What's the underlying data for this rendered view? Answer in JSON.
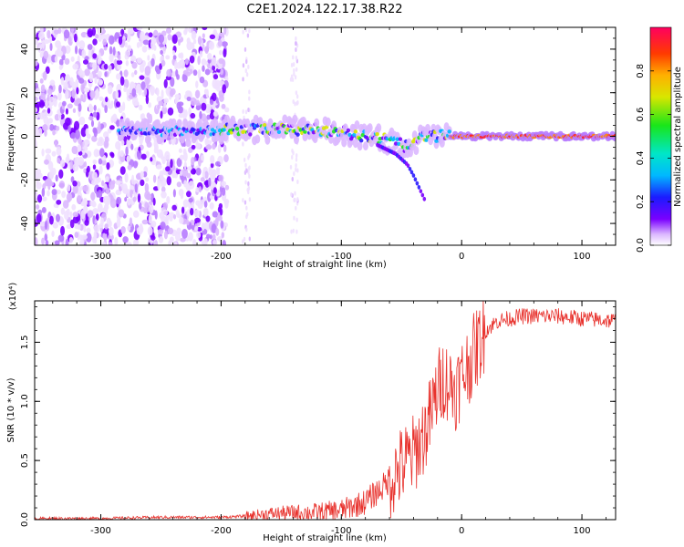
{
  "title": "C2E1.2024.122.17.38.R22",
  "colors": {
    "snr_line": "#e8322d",
    "axis": "#000000",
    "heat_low": "#e6ccff",
    "heat_mid": "#7a00ff",
    "heat_high": "#ff2020"
  },
  "chart_data": [
    {
      "type": "heatmap",
      "title": "C2E1.2024.122.17.38.R22",
      "xlabel": "Height of straight line (km)",
      "ylabel": "Frequency (Hz)",
      "xlim": [
        -355,
        128
      ],
      "ylim": [
        -50,
        50
      ],
      "xticks": [
        -300,
        -200,
        -100,
        0,
        100
      ],
      "yticks": [
        -40,
        -20,
        0,
        20,
        40
      ],
      "grid": false,
      "colorbar": {
        "label": "Normalized spectral amplitude",
        "range": [
          0,
          1
        ],
        "ticks": [
          0.0,
          0.2,
          0.4,
          0.6,
          0.8
        ]
      },
      "ridge": {
        "x": [
          -280,
          -250,
          -200,
          -150,
          -120,
          -100,
          -80,
          -60,
          -45,
          -38,
          -30,
          -20,
          0,
          50,
          128
        ],
        "y": [
          3,
          2,
          3,
          3,
          3,
          2,
          0,
          -2,
          -5,
          -2,
          0,
          0,
          0,
          0,
          0
        ]
      },
      "branch": {
        "x": [
          -70,
          -55,
          -45,
          -40,
          -35,
          -30
        ],
        "y": [
          -4,
          -8,
          -13,
          -18,
          -24,
          -30
        ]
      }
    },
    {
      "type": "line",
      "xlabel": "Height of straight line (km)",
      "ylabel": "SNR (10 * v/v)",
      "y_scale_note": "(x10⁴)",
      "xlim": [
        -355,
        128
      ],
      "ylim": [
        0,
        1.85
      ],
      "xticks": [
        -300,
        -200,
        -100,
        0,
        100
      ],
      "yticks": [
        0.0,
        0.5,
        1.0,
        1.5
      ],
      "grid": false,
      "series": [
        {
          "x": [
            -355,
            -300,
            -250,
            -200,
            -180,
            -160,
            -140,
            -120,
            -100,
            -80,
            -65,
            -50,
            -40,
            -30,
            -25,
            -20,
            -15,
            -10,
            -5,
            0,
            10,
            20,
            30,
            50,
            80,
            100,
            128
          ],
          "values": [
            0.01,
            0.01,
            0.02,
            0.02,
            0.03,
            0.05,
            0.06,
            0.06,
            0.08,
            0.15,
            0.28,
            0.45,
            0.55,
            0.75,
            0.9,
            1.1,
            1.2,
            1.15,
            1.1,
            1.2,
            1.4,
            1.6,
            1.68,
            1.72,
            1.72,
            1.7,
            1.68
          ]
        }
      ]
    }
  ]
}
